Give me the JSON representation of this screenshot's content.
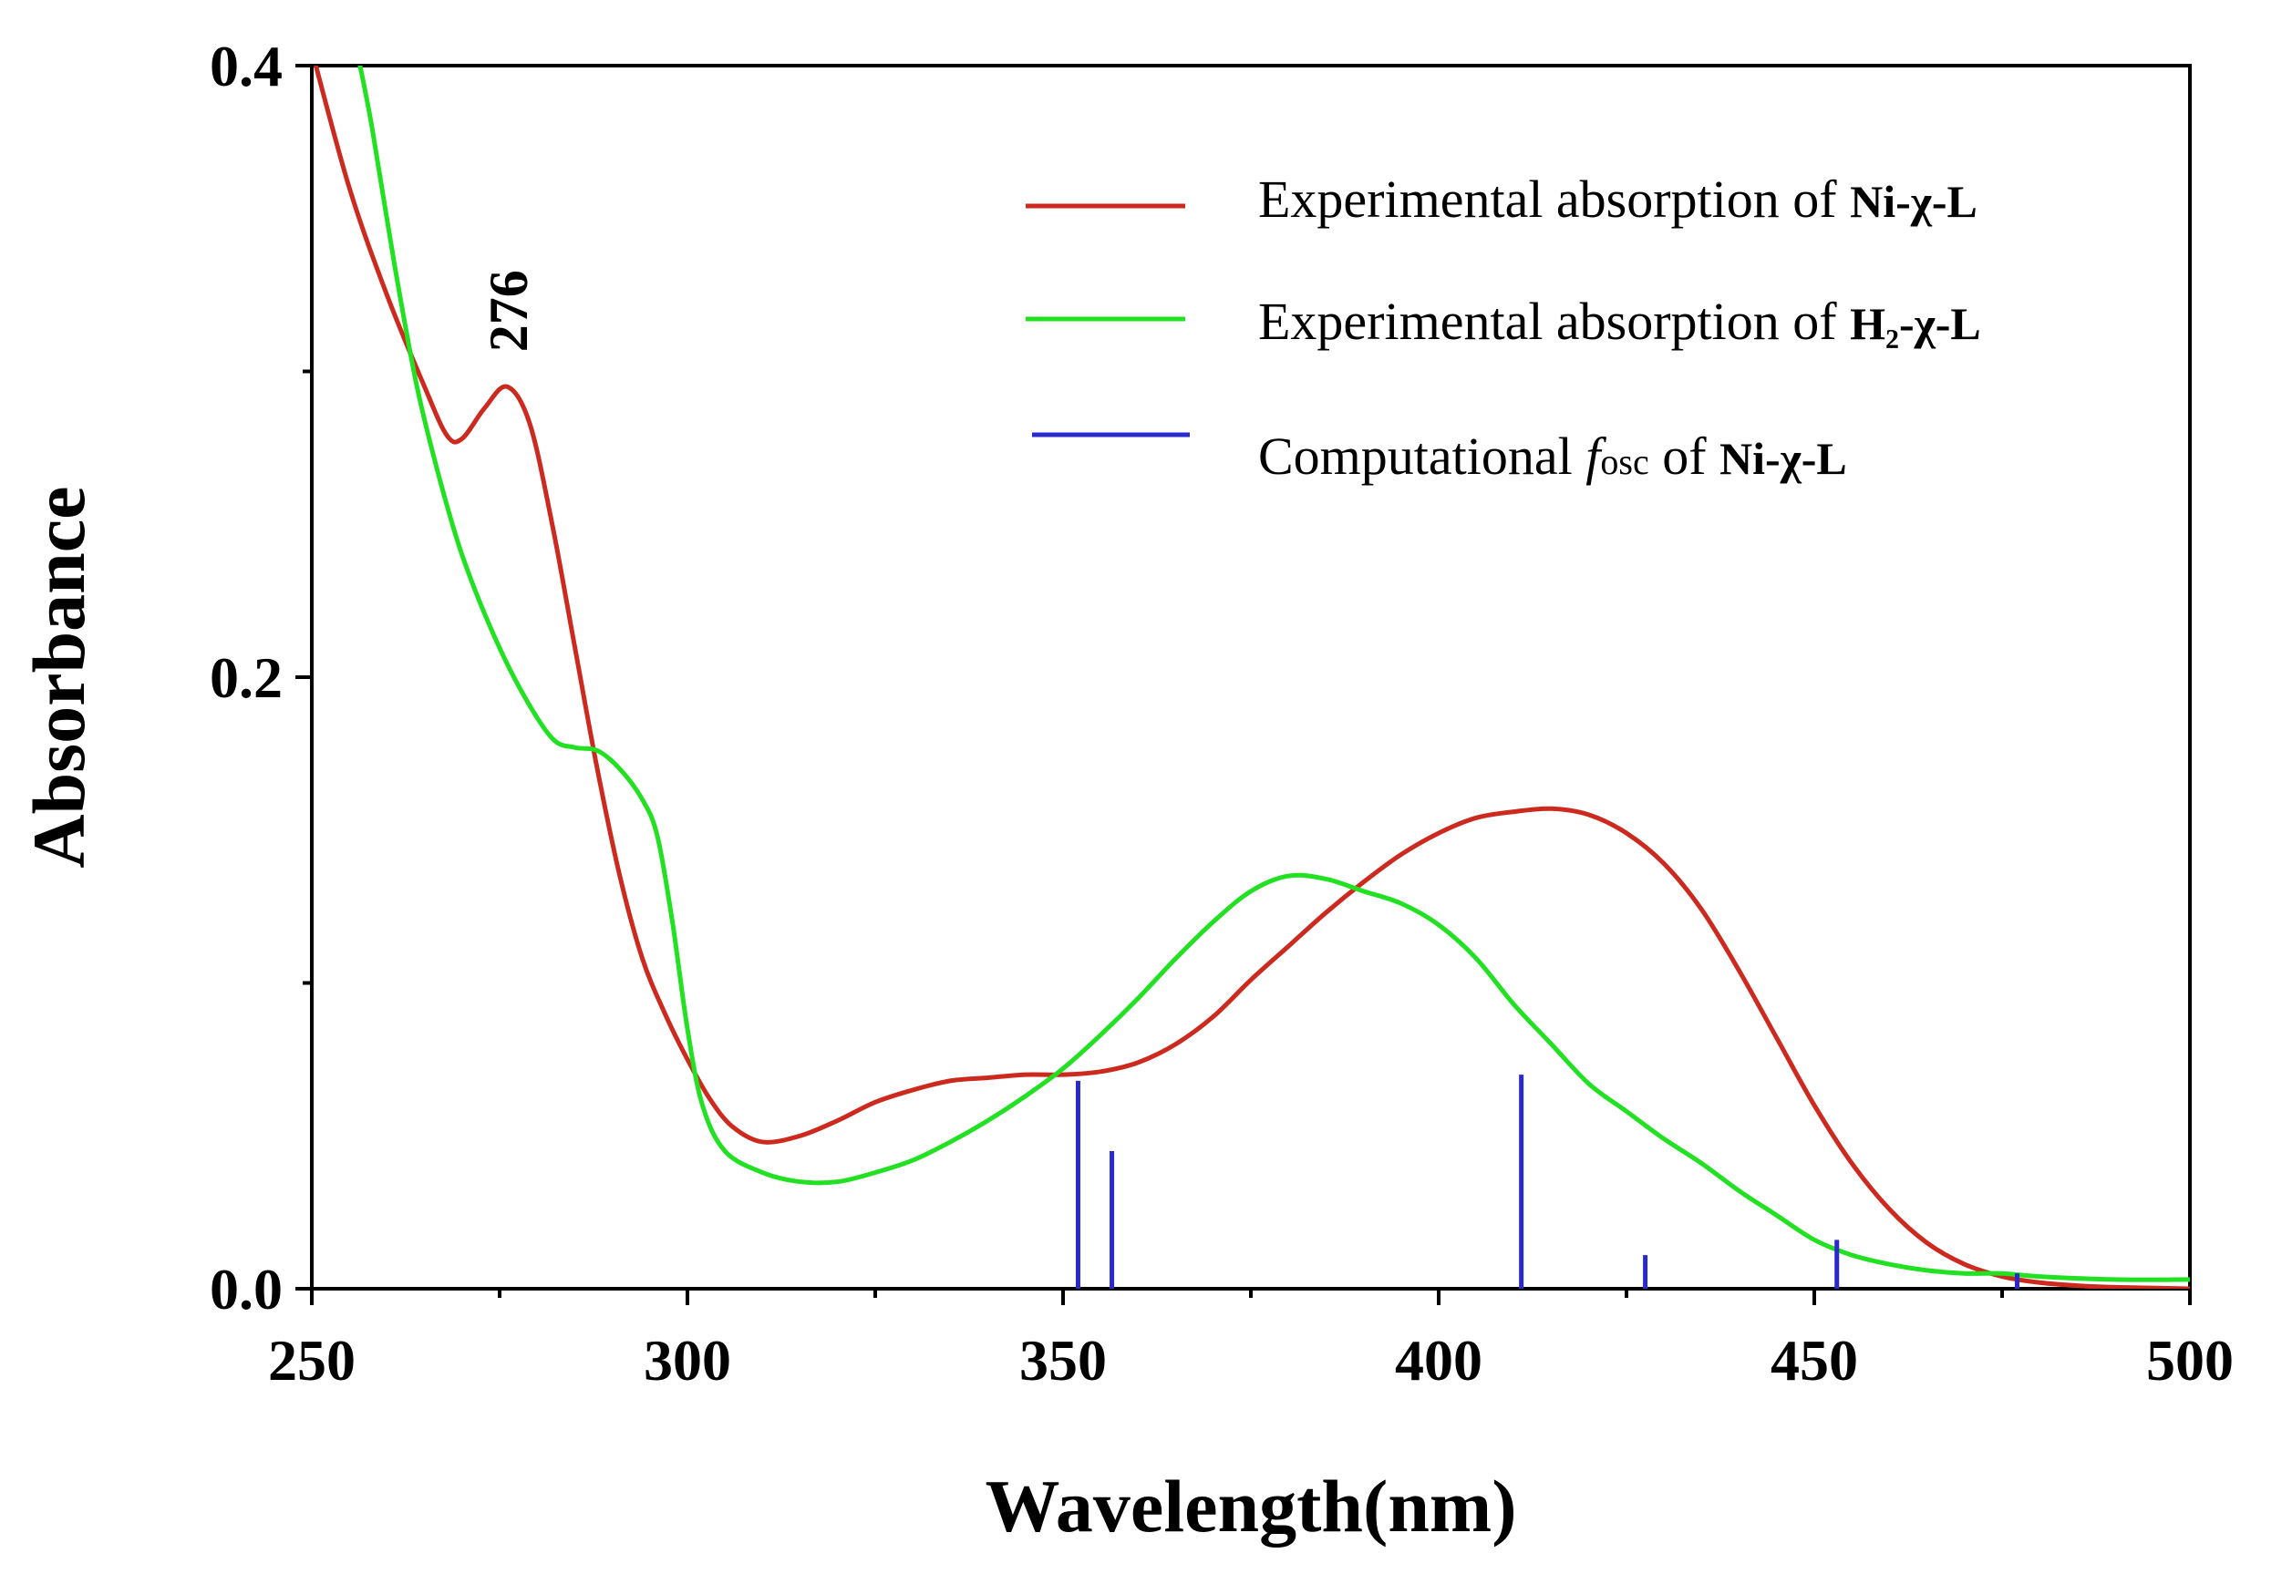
{
  "chart_data": {
    "type": "line",
    "xlabel": "Wavelength(nm)",
    "ylabel": "Absorbance",
    "xlim": [
      250,
      500
    ],
    "ylim": [
      0.0,
      0.4
    ],
    "x_ticks": [
      "250",
      "300",
      "350",
      "400",
      "450",
      "500"
    ],
    "y_ticks": [
      "0.0",
      "0.2",
      "0.4"
    ],
    "grid": false,
    "legend_position": "top-right",
    "legend": [
      {
        "prefix": "Experimental absorption of ",
        "compound": "Ni-χ-L",
        "color": "#cc2a1e"
      },
      {
        "prefix": "Experimental absorption of ",
        "compound": "H₂-χ-L",
        "color": "#22e022"
      },
      {
        "prefix": "Computational ",
        "italic": "f",
        "sub": "osc",
        "suffix": " of ",
        "compound": "Ni-χ-L",
        "color": "#2a2acc"
      }
    ],
    "annotations": [
      {
        "text": "276",
        "x": 276,
        "y": 0.295
      }
    ],
    "series": [
      {
        "color": "#cc2a1e",
        "points": [
          [
            250,
            0.405
          ],
          [
            255,
            0.36
          ],
          [
            260,
            0.325
          ],
          [
            265,
            0.295
          ],
          [
            268,
            0.279
          ],
          [
            270,
            0.278
          ],
          [
            273,
            0.288
          ],
          [
            276,
            0.295
          ],
          [
            279,
            0.283
          ],
          [
            282,
            0.25
          ],
          [
            285,
            0.21
          ],
          [
            288,
            0.17
          ],
          [
            291,
            0.135
          ],
          [
            294,
            0.108
          ],
          [
            297,
            0.09
          ],
          [
            300,
            0.075
          ],
          [
            303,
            0.062
          ],
          [
            306,
            0.053
          ],
          [
            310,
            0.048
          ],
          [
            315,
            0.05
          ],
          [
            320,
            0.055
          ],
          [
            325,
            0.061
          ],
          [
            330,
            0.065
          ],
          [
            335,
            0.068
          ],
          [
            340,
            0.069
          ],
          [
            345,
            0.07
          ],
          [
            350,
            0.07
          ],
          [
            355,
            0.071
          ],
          [
            360,
            0.074
          ],
          [
            365,
            0.08
          ],
          [
            370,
            0.089
          ],
          [
            375,
            0.101
          ],
          [
            380,
            0.112
          ],
          [
            385,
            0.123
          ],
          [
            390,
            0.133
          ],
          [
            395,
            0.142
          ],
          [
            400,
            0.149
          ],
          [
            405,
            0.154
          ],
          [
            410,
            0.156
          ],
          [
            415,
            0.157
          ],
          [
            420,
            0.155
          ],
          [
            425,
            0.149
          ],
          [
            430,
            0.139
          ],
          [
            435,
            0.124
          ],
          [
            440,
            0.104
          ],
          [
            445,
            0.082
          ],
          [
            450,
            0.06
          ],
          [
            455,
            0.041
          ],
          [
            460,
            0.026
          ],
          [
            465,
            0.015
          ],
          [
            470,
            0.008
          ],
          [
            475,
            0.004
          ],
          [
            480,
            0.002
          ],
          [
            485,
            0.001
          ],
          [
            490,
            0.0005
          ],
          [
            500,
            0.0
          ]
        ]
      },
      {
        "color": "#22e022",
        "points": [
          [
            256,
            0.405
          ],
          [
            258,
            0.38
          ],
          [
            261,
            0.335
          ],
          [
            264,
            0.295
          ],
          [
            267,
            0.265
          ],
          [
            270,
            0.24
          ],
          [
            274,
            0.215
          ],
          [
            278,
            0.195
          ],
          [
            282,
            0.18
          ],
          [
            285,
            0.177
          ],
          [
            288,
            0.176
          ],
          [
            291,
            0.17
          ],
          [
            294,
            0.16
          ],
          [
            296,
            0.148
          ],
          [
            298,
            0.12
          ],
          [
            300,
            0.085
          ],
          [
            302,
            0.06
          ],
          [
            305,
            0.045
          ],
          [
            310,
            0.038
          ],
          [
            315,
            0.035
          ],
          [
            320,
            0.035
          ],
          [
            325,
            0.038
          ],
          [
            330,
            0.042
          ],
          [
            335,
            0.048
          ],
          [
            340,
            0.055
          ],
          [
            345,
            0.063
          ],
          [
            350,
            0.072
          ],
          [
            355,
            0.083
          ],
          [
            360,
            0.095
          ],
          [
            365,
            0.108
          ],
          [
            370,
            0.12
          ],
          [
            375,
            0.13
          ],
          [
            380,
            0.135
          ],
          [
            385,
            0.134
          ],
          [
            390,
            0.13
          ],
          [
            395,
            0.126
          ],
          [
            400,
            0.119
          ],
          [
            405,
            0.108
          ],
          [
            410,
            0.093
          ],
          [
            415,
            0.08
          ],
          [
            420,
            0.067
          ],
          [
            425,
            0.058
          ],
          [
            430,
            0.049
          ],
          [
            435,
            0.041
          ],
          [
            440,
            0.032
          ],
          [
            445,
            0.024
          ],
          [
            450,
            0.016
          ],
          [
            455,
            0.011
          ],
          [
            460,
            0.008
          ],
          [
            465,
            0.006
          ],
          [
            470,
            0.005
          ],
          [
            475,
            0.005
          ],
          [
            480,
            0.004
          ],
          [
            490,
            0.003
          ],
          [
            500,
            0.003
          ]
        ]
      },
      {
        "color": "#2a2acc",
        "type": "stick",
        "points": [
          [
            352,
            0.068
          ],
          [
            356.5,
            0.045
          ],
          [
            411,
            0.07
          ],
          [
            427.5,
            0.011
          ],
          [
            453,
            0.016
          ],
          [
            477,
            0.005
          ]
        ]
      }
    ]
  }
}
